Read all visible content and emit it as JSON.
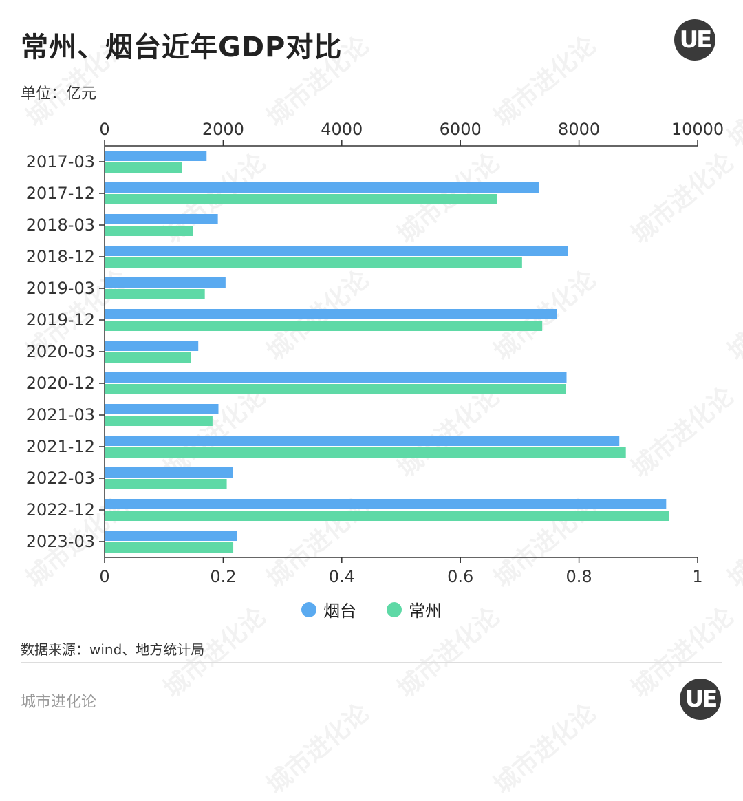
{
  "title": "常州、烟台近年GDP对比",
  "unit": "单位：亿元",
  "logo_text": "UE",
  "legend": [
    {
      "name": "烟台",
      "color": "#5aaaf0"
    },
    {
      "name": "常州",
      "color": "#5ed9a6"
    }
  ],
  "source": "数据来源：wind、地方统计局",
  "brand": "城市进化论",
  "watermark": "城市进化论",
  "chart_data": {
    "type": "bar",
    "orientation": "horizontal",
    "categories": [
      "2017-03",
      "2017-12",
      "2018-03",
      "2018-12",
      "2019-03",
      "2019-12",
      "2020-03",
      "2020-12",
      "2021-03",
      "2021-12",
      "2022-03",
      "2022-12",
      "2023-03"
    ],
    "series": [
      {
        "name": "烟台",
        "color": "#5aaaf0",
        "values": [
          1720,
          7320,
          1910,
          7810,
          2040,
          7630,
          1580,
          7790,
          1920,
          8680,
          2160,
          9470,
          2230
        ]
      },
      {
        "name": "常州",
        "color": "#5ed9a6",
        "values": [
          1310,
          6620,
          1490,
          7040,
          1690,
          7380,
          1460,
          7780,
          1820,
          8790,
          2060,
          9520,
          2170
        ]
      }
    ],
    "top_axis": {
      "min": 0,
      "max": 10000,
      "ticks": [
        "0",
        "2000",
        "4000",
        "6000",
        "8000",
        "10000"
      ]
    },
    "bottom_axis": {
      "min": 0,
      "max": 1,
      "ticks": [
        "0",
        "0.2",
        "0.4",
        "0.6",
        "0.8",
        "1"
      ]
    },
    "legend_position": "bottom-center"
  }
}
